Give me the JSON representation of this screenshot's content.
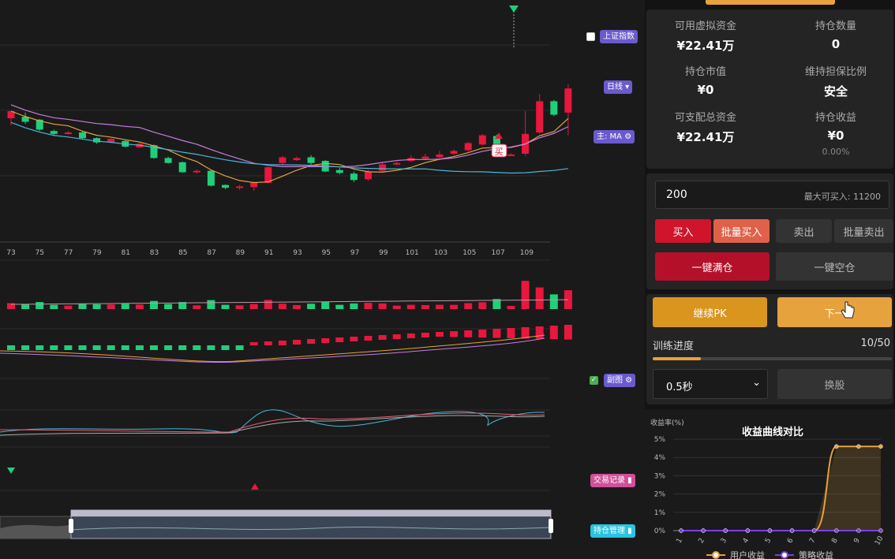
{
  "chart": {
    "x_labels": [
      "73",
      "75",
      "77",
      "79",
      "81",
      "83",
      "85",
      "87",
      "89",
      "91",
      "93",
      "95",
      "97",
      "99",
      "101",
      "103",
      "105",
      "107",
      "109"
    ],
    "buy_marker": "买",
    "candles": [
      [
        0,
        1,
        1,
        -1
      ],
      [
        0.2,
        -0.5,
        0.8,
        -0.8
      ],
      [
        -0.2,
        -1.6,
        -0.1,
        -1.8
      ],
      [
        -1.8,
        -2.2,
        -1.6,
        -2.5
      ],
      [
        -2.1,
        -2.0,
        -1.8,
        -2.3
      ],
      [
        -2.0,
        -2.8,
        -1.9,
        -3.0
      ],
      [
        -2.8,
        -3.4,
        -2.7,
        -3.6
      ],
      [
        -3.4,
        -2.9,
        -2.8,
        -3.5
      ],
      [
        -3.2,
        -4.0,
        -3.1,
        -4.1
      ],
      [
        -4.1,
        -3.6,
        -3.4,
        -4.2
      ],
      [
        -3.8,
        -5.6,
        -3.7,
        -5.7
      ],
      [
        -5.6,
        -6.3,
        -5.4,
        -6.4
      ],
      [
        -6.2,
        -7.6,
        -6.1,
        -7.7
      ],
      [
        -7.6,
        -7.4,
        -7.2,
        -7.8
      ],
      [
        -7.4,
        -9.5,
        -7.3,
        -9.6
      ],
      [
        -9.4,
        -9.8,
        -9.3,
        -10.0
      ],
      [
        -9.8,
        -9.6,
        -9.4,
        -10.1
      ],
      [
        -9.7,
        -9.0,
        -8.9,
        -10.2
      ],
      [
        -9.1,
        -6.9,
        -6.8,
        -9.2
      ],
      [
        -6.3,
        -5.5,
        -5.3,
        -6.5
      ],
      [
        -5.9,
        -5.6,
        -5.4,
        -6.0
      ],
      [
        -5.5,
        -6.3,
        -5.2,
        -6.6
      ],
      [
        -6.0,
        -7.5,
        -5.9,
        -7.6
      ],
      [
        -7.3,
        -7.7,
        -7.0,
        -7.9
      ],
      [
        -7.8,
        -8.7,
        -7.5,
        -9.0
      ],
      [
        -8.6,
        -7.5,
        -7.3,
        -8.8
      ],
      [
        -7.4,
        -6.5,
        -6.3,
        -7.5
      ],
      [
        -6.4,
        -6.3,
        -6.1,
        -6.6
      ],
      [
        -6.0,
        -5.6,
        -5.2,
        -6.2
      ],
      [
        -5.7,
        -5.4,
        -5.0,
        -5.9
      ],
      [
        -5.5,
        -5.1,
        -4.6,
        -5.7
      ],
      [
        -5.0,
        -4.6,
        -4.4,
        -5.2
      ],
      [
        -4.5,
        -3.5,
        -3.3,
        -4.7
      ],
      [
        -3.7,
        -2.4,
        -2.2,
        -3.8
      ],
      [
        -2.5,
        -5.0,
        -2.3,
        -5.2
      ],
      [
        -5.1,
        -5.1,
        -4.9,
        -5.3
      ],
      [
        -5.0,
        -2.2,
        1.0,
        -5.3
      ],
      [
        -2.0,
        2.4,
        3.4,
        -2.2
      ],
      [
        2.4,
        0.5,
        2.6,
        0.3
      ],
      [
        0.8,
        4.2,
        4.8,
        -2.4
      ]
    ],
    "ma_values": [
      {
        "name": "MA1",
        "color": "#e6a23c"
      },
      {
        "name": "MA2",
        "color": "#c77dde"
      },
      {
        "name": "MA3",
        "color": "#4ab6d6"
      }
    ]
  },
  "side_buttons": {
    "index": "上证指数",
    "period": "日线 ▾",
    "main_indicator": "主: MA ⚙",
    "sub_chart": "副图 ⚙",
    "trade_records": "交易记录 ▮",
    "positions": "持仓管理 ▮"
  },
  "account": {
    "available_cash_label": "可用虚拟资金",
    "available_cash": "¥22.41万",
    "position_qty_label": "持仓数量",
    "position_qty": "0",
    "position_value_label": "持仓市值",
    "position_value": "¥0",
    "margin_ratio_label": "维持担保比例",
    "margin_ratio": "安全",
    "allocatable_label": "可支配总资金",
    "allocatable": "¥22.41万",
    "position_pnl_label": "持仓收益",
    "position_pnl": "¥0",
    "position_pnl_pct": "0.00%"
  },
  "order": {
    "quantity": "200",
    "max_buy": "最大可买入: 11200",
    "buy": "买入",
    "batch_buy": "批量买入",
    "sell": "卖出",
    "batch_sell": "批量卖出",
    "full_position": "一键满仓",
    "empty_position": "一键空仓"
  },
  "training": {
    "continue_pk": "继续PK",
    "next": "下一",
    "progress_label": "训练进度",
    "progress_text": "10/50",
    "progress_fraction": 0.2,
    "speed": "0.5秒",
    "switch_stock": "换股"
  },
  "chart_data": {
    "type": "line",
    "title": "收益曲线对比",
    "ylabel": "收益率(%)",
    "x": [
      "1",
      "2",
      "3",
      "4",
      "5",
      "6",
      "7",
      "8",
      "9",
      "10"
    ],
    "y_ticks": [
      "0%",
      "1%",
      "2%",
      "3%",
      "4%",
      "5%"
    ],
    "ylim": [
      0,
      5
    ],
    "series": [
      {
        "name": "用户收益",
        "color": "#e6a23c",
        "values": [
          0,
          0,
          0,
          0,
          0,
          0,
          0,
          4.6,
          4.6,
          4.6
        ]
      },
      {
        "name": "策略收益",
        "color": "#7b3fe4",
        "values": [
          0,
          0,
          0,
          0,
          0,
          0,
          0,
          0,
          0,
          0
        ]
      }
    ],
    "legend_placement": "bottom"
  }
}
